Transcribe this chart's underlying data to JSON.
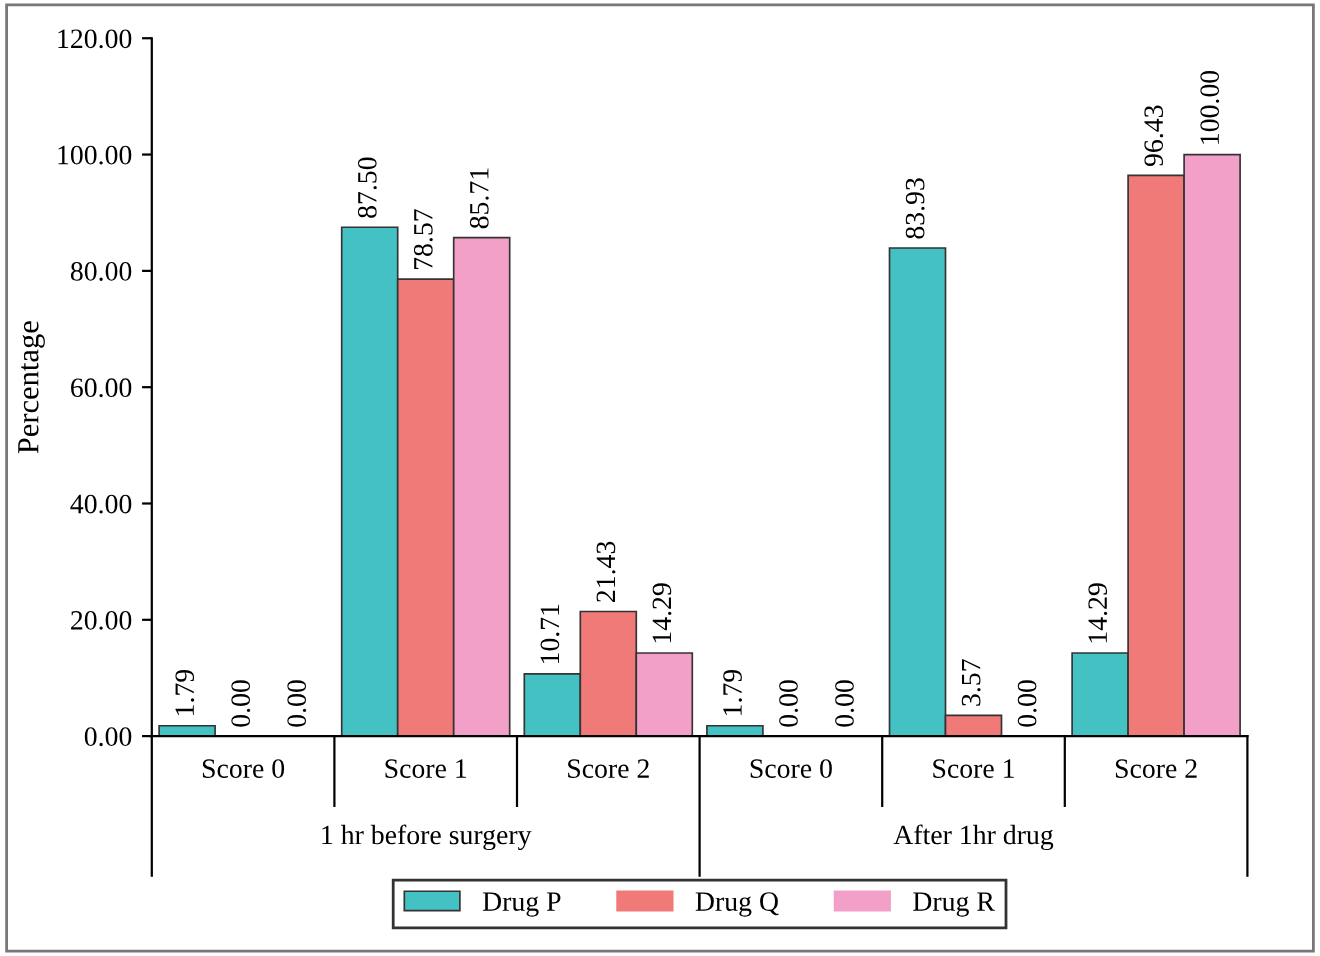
{
  "chart_data": {
    "type": "bar",
    "ylabel": "Percentage",
    "categories": [
      "Score 0",
      "Score 1",
      "Score 2",
      "Score 0",
      "Score 1",
      "Score 2"
    ],
    "annotations": [
      "1 hr before surgery",
      "After 1hr drug"
    ],
    "ylim": [
      0,
      120
    ],
    "yticks": [
      {
        "value": 0,
        "label": "0.00"
      },
      {
        "value": 20,
        "label": "20.00"
      },
      {
        "value": 40,
        "label": "40.00"
      },
      {
        "value": 60,
        "label": "60.00"
      },
      {
        "value": 80,
        "label": "80.00"
      },
      {
        "value": 100,
        "label": "100.00"
      },
      {
        "value": 120,
        "label": "120.00"
      }
    ],
    "series": [
      {
        "name": "Drug P",
        "color": "#43c1c3",
        "values": [
          1.79,
          87.5,
          10.71,
          1.79,
          83.93,
          14.29
        ],
        "value_labels": [
          "1.79",
          "87.50",
          "10.71",
          "1.79",
          "83.93",
          "14.29"
        ]
      },
      {
        "name": "Drug Q",
        "color": "#f07a78",
        "values": [
          0,
          78.57,
          21.43,
          0,
          3.57,
          96.43
        ],
        "value_labels": [
          "0.00",
          "78.57",
          "21.43",
          "0.00",
          "3.57",
          "96.43"
        ]
      },
      {
        "name": "Drug R",
        "color": "#f3a0c8",
        "values": [
          0,
          85.71,
          14.29,
          0,
          0,
          100
        ],
        "value_labels": [
          "0.00",
          "85.71",
          "14.29",
          "0.00",
          "0.00",
          "100.00"
        ]
      }
    ],
    "grid": false,
    "legend": "bottom"
  }
}
